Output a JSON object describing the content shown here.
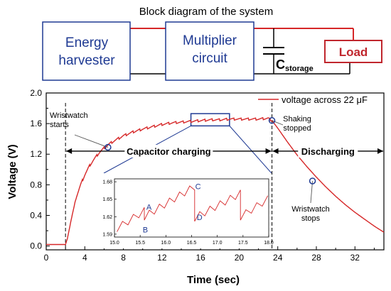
{
  "block_diagram": {
    "title": "Block diagram of the system",
    "energy_harvester": [
      "Energy",
      "harvester"
    ],
    "multiplier": [
      "Multiplier",
      "circuit"
    ],
    "capacitor_label": "C",
    "capacitor_subscript": "storage",
    "load": "Load",
    "colors": {
      "block_text": "#1f3a93",
      "load": "#c0262d",
      "wire_top": "#d62728",
      "wire": "#000000"
    }
  },
  "chart_data": {
    "type": "line",
    "title": "",
    "xlabel": "Time (sec)",
    "ylabel": "Voltage (V)",
    "xlim": [
      0,
      35
    ],
    "ylim": [
      -0.05,
      2.0
    ],
    "xticks": [
      0,
      4,
      8,
      12,
      16,
      20,
      24,
      28,
      32
    ],
    "yticks": [
      0.0,
      0.4,
      0.8,
      1.2,
      1.6,
      2.0
    ],
    "grid": false,
    "legend": {
      "position": "top-right",
      "entries": [
        "voltage across 22 μF"
      ]
    },
    "series": [
      {
        "name": "voltage across 22 μF",
        "color": "#d62728",
        "x": [
          0,
          1.0,
          2.0,
          2.2,
          2.6,
          3.0,
          3.5,
          4.0,
          4.5,
          5.0,
          5.5,
          6.0,
          6.5,
          7,
          8,
          9,
          10,
          11,
          12,
          13,
          14,
          15,
          16,
          17,
          18,
          19,
          20,
          21,
          22,
          23,
          23.4,
          24,
          25,
          26,
          27,
          28,
          29,
          30,
          31,
          32,
          33,
          34,
          35
        ],
        "y": [
          0.02,
          0.02,
          0.02,
          0.1,
          0.35,
          0.58,
          0.78,
          0.93,
          1.05,
          1.14,
          1.22,
          1.28,
          1.33,
          1.37,
          1.44,
          1.49,
          1.53,
          1.56,
          1.59,
          1.61,
          1.62,
          1.63,
          1.64,
          1.65,
          1.65,
          1.66,
          1.66,
          1.66,
          1.66,
          1.67,
          1.64,
          1.54,
          1.36,
          1.19,
          1.04,
          0.9,
          0.77,
          0.65,
          0.54,
          0.44,
          0.35,
          0.26,
          0.18
        ],
        "sawtooth_amplitude": 0.03
      }
    ],
    "annotations": {
      "dashed_lines_x": [
        2.0,
        23.4
      ],
      "capacitor_charging": {
        "label": "Capacitor charging",
        "x_range": [
          2.0,
          23.4
        ],
        "y": 1.24
      },
      "discharging": {
        "label": "Discharging",
        "x_range": [
          23.4,
          35
        ],
        "y": 1.24
      },
      "markers": [
        {
          "label": "Wristwatch starts",
          "x": 6.4,
          "y": 1.29
        },
        {
          "label": "Shaking stopped",
          "x": 23.4,
          "y": 1.64
        },
        {
          "label": "Wristwatch stops",
          "x": 27.6,
          "y": 0.85
        }
      ],
      "zoom_box": {
        "x_range": [
          15.0,
          19.0
        ],
        "y_range": [
          1.57,
          1.73
        ]
      }
    },
    "inset": {
      "xlim": [
        15.0,
        18.0
      ],
      "ylim": [
        1.585,
        1.685
      ],
      "xticks": [
        "15.0",
        "15.5",
        "16.0",
        "16.5",
        "17.0",
        "17.5",
        "18.0"
      ],
      "yticks": [
        "1.59",
        "1.62",
        "1.65",
        "1.68"
      ],
      "point_labels": [
        {
          "label": "A",
          "x": 15.62,
          "y": 1.637
        },
        {
          "label": "B",
          "x": 15.55,
          "y": 1.598
        },
        {
          "label": "C",
          "x": 16.57,
          "y": 1.672
        },
        {
          "label": "D",
          "x": 16.6,
          "y": 1.619
        }
      ]
    }
  }
}
